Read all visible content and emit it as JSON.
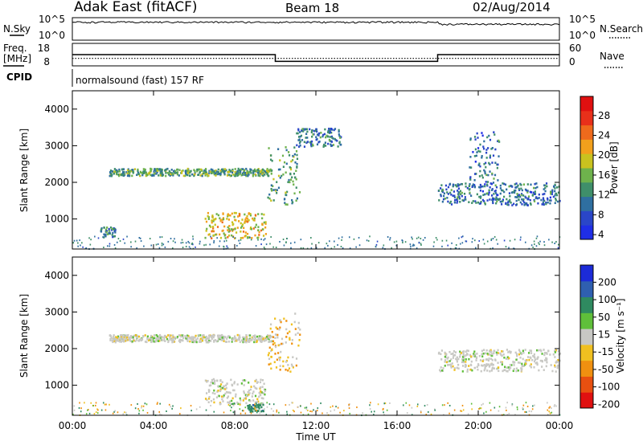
{
  "header": {
    "title": "Adak East (fitACF)",
    "beam": "Beam 18",
    "date": "02/Aug/2014"
  },
  "top_panels": {
    "nsky_label": "N.Sky",
    "nsearch_label": "N.Search",
    "noise_ticks": [
      "10^5",
      "10^0"
    ],
    "freq_label": "Freq.",
    "freq_unit": "[MHz]",
    "freq_ticks": [
      "18",
      "8"
    ],
    "nave_label": "Nave",
    "nave_ticks": [
      "60",
      "0"
    ],
    "cpid_label": "CPID",
    "cpid_text": "normalsound (fast) 157 RF"
  },
  "x_axis": {
    "label": "Time UT",
    "ticks": [
      "00:00",
      "04:00",
      "08:00",
      "12:00",
      "16:00",
      "20:00",
      "00:00"
    ]
  },
  "colors": {
    "power_scale": [
      "#1f2ee6",
      "#2a46c8",
      "#2f6fa0",
      "#3f8f6a",
      "#6eb24c",
      "#c9c21f",
      "#f2a01c",
      "#ef6a1c",
      "#e8301a",
      "#e01010"
    ],
    "velocity_scale": [
      "#1c2bd8",
      "#2f5fb0",
      "#2f8a60",
      "#5fbf3a",
      "#c8c8c4",
      "#f0c020",
      "#f09010",
      "#e85010",
      "#e01010"
    ]
  },
  "chart_data": [
    {
      "type": "heatmap",
      "title": "",
      "xlabel": "Time UT",
      "ylabel": "Slant Range [km]",
      "xlim": [
        0,
        24
      ],
      "ylim": [
        180,
        4500
      ],
      "y_ticks": [
        "1000",
        "2000",
        "3000",
        "4000"
      ],
      "colorbar": {
        "label": "Power [dB]",
        "ticks": [
          "4",
          "8",
          "12",
          "16",
          "20",
          "24",
          "28"
        ],
        "range": [
          0,
          30
        ]
      },
      "regions": [
        {
          "t": [
            1.8,
            9.8
          ],
          "r": [
            2200,
            2400
          ],
          "value": 10
        },
        {
          "t": [
            6.5,
            9.5
          ],
          "r": [
            500,
            1200
          ],
          "value": 16
        },
        {
          "t": [
            9.6,
            11.2
          ],
          "r": [
            1400,
            3000
          ],
          "value": 10
        },
        {
          "t": [
            11,
            13.2
          ],
          "r": [
            3000,
            3500
          ],
          "value": 6
        },
        {
          "t": [
            1.3,
            2.1
          ],
          "r": [
            500,
            800
          ],
          "value": 8
        },
        {
          "t": [
            18,
            24
          ],
          "r": [
            1400,
            2000
          ],
          "value": 6
        },
        {
          "t": [
            19.5,
            21
          ],
          "r": [
            2000,
            3400
          ],
          "value": 6
        }
      ]
    },
    {
      "type": "heatmap",
      "title": "",
      "xlabel": "Time UT",
      "ylabel": "Slant Range [km]",
      "xlim": [
        0,
        24
      ],
      "ylim": [
        180,
        4500
      ],
      "y_ticks": [
        "1000",
        "2000",
        "3000",
        "4000"
      ],
      "colorbar": {
        "label": "Velocity [m s⁻¹]",
        "ticks": [
          "200",
          "100",
          "50",
          "15",
          "-15",
          "-50",
          "-100",
          "-200"
        ],
        "range": [
          -250,
          250
        ]
      },
      "regions": [
        {
          "t": [
            1.8,
            9.8
          ],
          "r": [
            2200,
            2400
          ],
          "value": 0
        },
        {
          "t": [
            6.5,
            9.5
          ],
          "r": [
            500,
            1200
          ],
          "value": 0
        },
        {
          "t": [
            9.6,
            11.2
          ],
          "r": [
            1400,
            3000
          ],
          "value": -20
        },
        {
          "t": [
            8.6,
            9.4
          ],
          "r": [
            300,
            500
          ],
          "value": 60
        },
        {
          "t": [
            18,
            24
          ],
          "r": [
            1400,
            2000
          ],
          "value": 0
        }
      ]
    },
    {
      "type": "line",
      "title": "",
      "series": [
        {
          "name": "N.Sky",
          "x": [
            0,
            24
          ],
          "values": [
            10000,
            10000
          ]
        },
        {
          "name": "N.Search",
          "x": [
            0,
            24
          ],
          "values": [
            1000,
            1000
          ]
        }
      ]
    },
    {
      "type": "line",
      "title": "",
      "series": [
        {
          "name": "Freq.",
          "x": [
            0,
            10,
            10,
            18,
            18,
            24
          ],
          "values": [
            13,
            13,
            10,
            10,
            13,
            13
          ]
        },
        {
          "name": "Nave",
          "x": [
            0,
            24
          ],
          "values": [
            20,
            20
          ]
        }
      ]
    }
  ]
}
